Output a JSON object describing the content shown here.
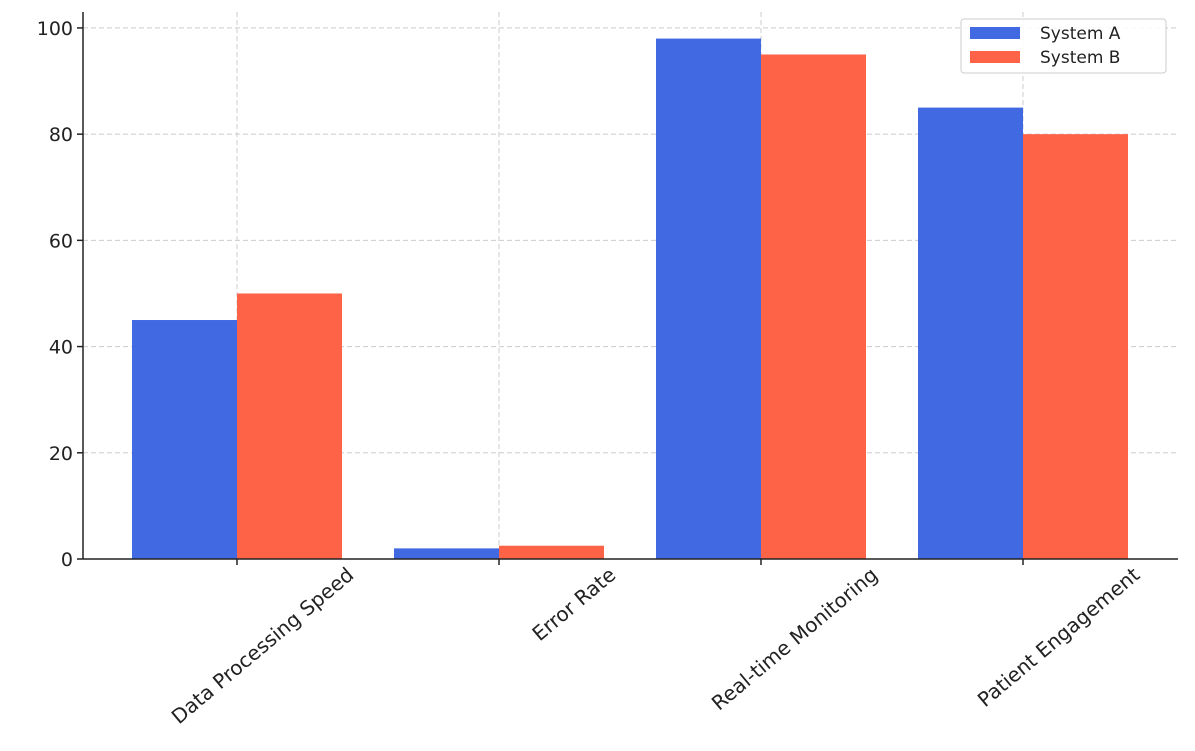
{
  "chart_data": {
    "type": "bar",
    "categories": [
      "Data Processing Speed",
      "Error Rate",
      "Real-time Monitoring",
      "Patient Engagement"
    ],
    "series": [
      {
        "name": "System A",
        "values": [
          45,
          2,
          98,
          85
        ],
        "color": "#4169E1"
      },
      {
        "name": "System B",
        "values": [
          50,
          2.5,
          95,
          80
        ],
        "color": "#FF6347"
      }
    ],
    "title": "",
    "xlabel": "",
    "ylabel": "",
    "ylim": [
      0,
      103
    ],
    "yticks": [
      0,
      20,
      40,
      60,
      80,
      100
    ],
    "ytick_labels": [
      "0",
      "20",
      "40",
      "60",
      "80",
      "100"
    ],
    "grid": true,
    "legend_position": "top-right"
  }
}
